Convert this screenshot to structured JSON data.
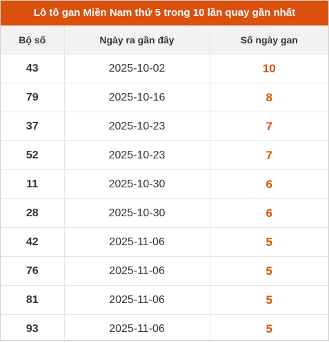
{
  "title": "Lô tô gan Miền Nam thứ 5 trong 10 lần quay gần nhất",
  "colors": {
    "header_bg": "#d9510d",
    "accent": "#d9510d"
  },
  "table": {
    "headers": [
      "Bộ số",
      "Ngày ra gần đây",
      "Số ngày gan"
    ],
    "rows": [
      {
        "num": "43",
        "date": "2025-10-02",
        "days": "10"
      },
      {
        "num": "79",
        "date": "2025-10-16",
        "days": "8"
      },
      {
        "num": "37",
        "date": "2025-10-23",
        "days": "7"
      },
      {
        "num": "52",
        "date": "2025-10-23",
        "days": "7"
      },
      {
        "num": "11",
        "date": "2025-10-30",
        "days": "6"
      },
      {
        "num": "28",
        "date": "2025-10-30",
        "days": "6"
      },
      {
        "num": "42",
        "date": "2025-11-06",
        "days": "5"
      },
      {
        "num": "76",
        "date": "2025-11-06",
        "days": "5"
      },
      {
        "num": "81",
        "date": "2025-11-06",
        "days": "5"
      },
      {
        "num": "93",
        "date": "2025-11-06",
        "days": "5"
      }
    ]
  }
}
